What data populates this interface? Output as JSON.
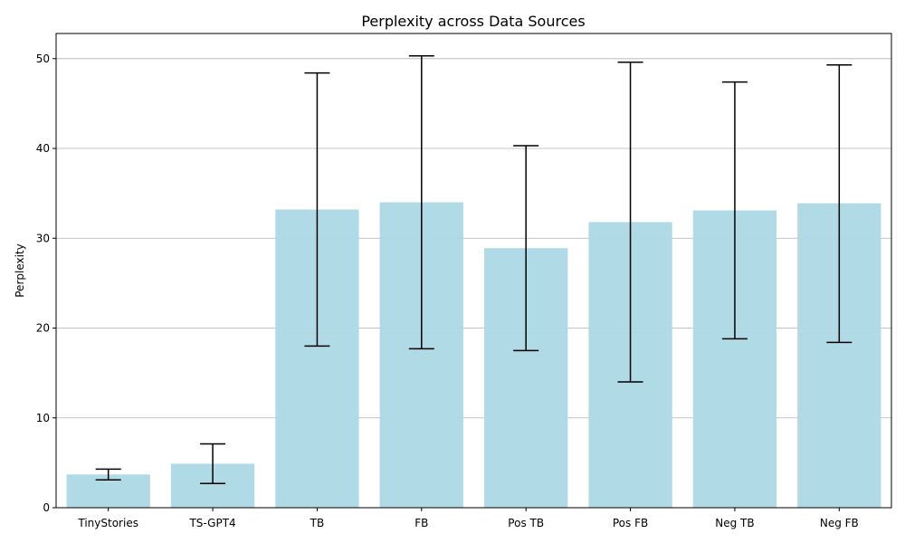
{
  "chart_data": {
    "type": "bar",
    "title": "Perplexity across Data Sources",
    "xlabel": "",
    "ylabel": "Perplexity",
    "categories": [
      "TinyStories",
      "TS-GPT4",
      "TB",
      "FB",
      "Pos TB",
      "Pos FB",
      "Neg TB",
      "Neg FB"
    ],
    "values": [
      3.7,
      4.9,
      33.2,
      34.0,
      28.9,
      31.8,
      33.1,
      33.9
    ],
    "error_low": [
      3.1,
      2.7,
      18.0,
      17.7,
      17.5,
      14.0,
      18.8,
      18.4
    ],
    "error_high": [
      4.3,
      7.1,
      48.4,
      50.3,
      40.3,
      49.6,
      47.4,
      49.3
    ],
    "ylim": [
      0,
      52.8
    ],
    "yticks": [
      0,
      10,
      20,
      30,
      40,
      50
    ],
    "grid": "y",
    "bar_color": "#add8e6",
    "error_color": "#000000"
  }
}
